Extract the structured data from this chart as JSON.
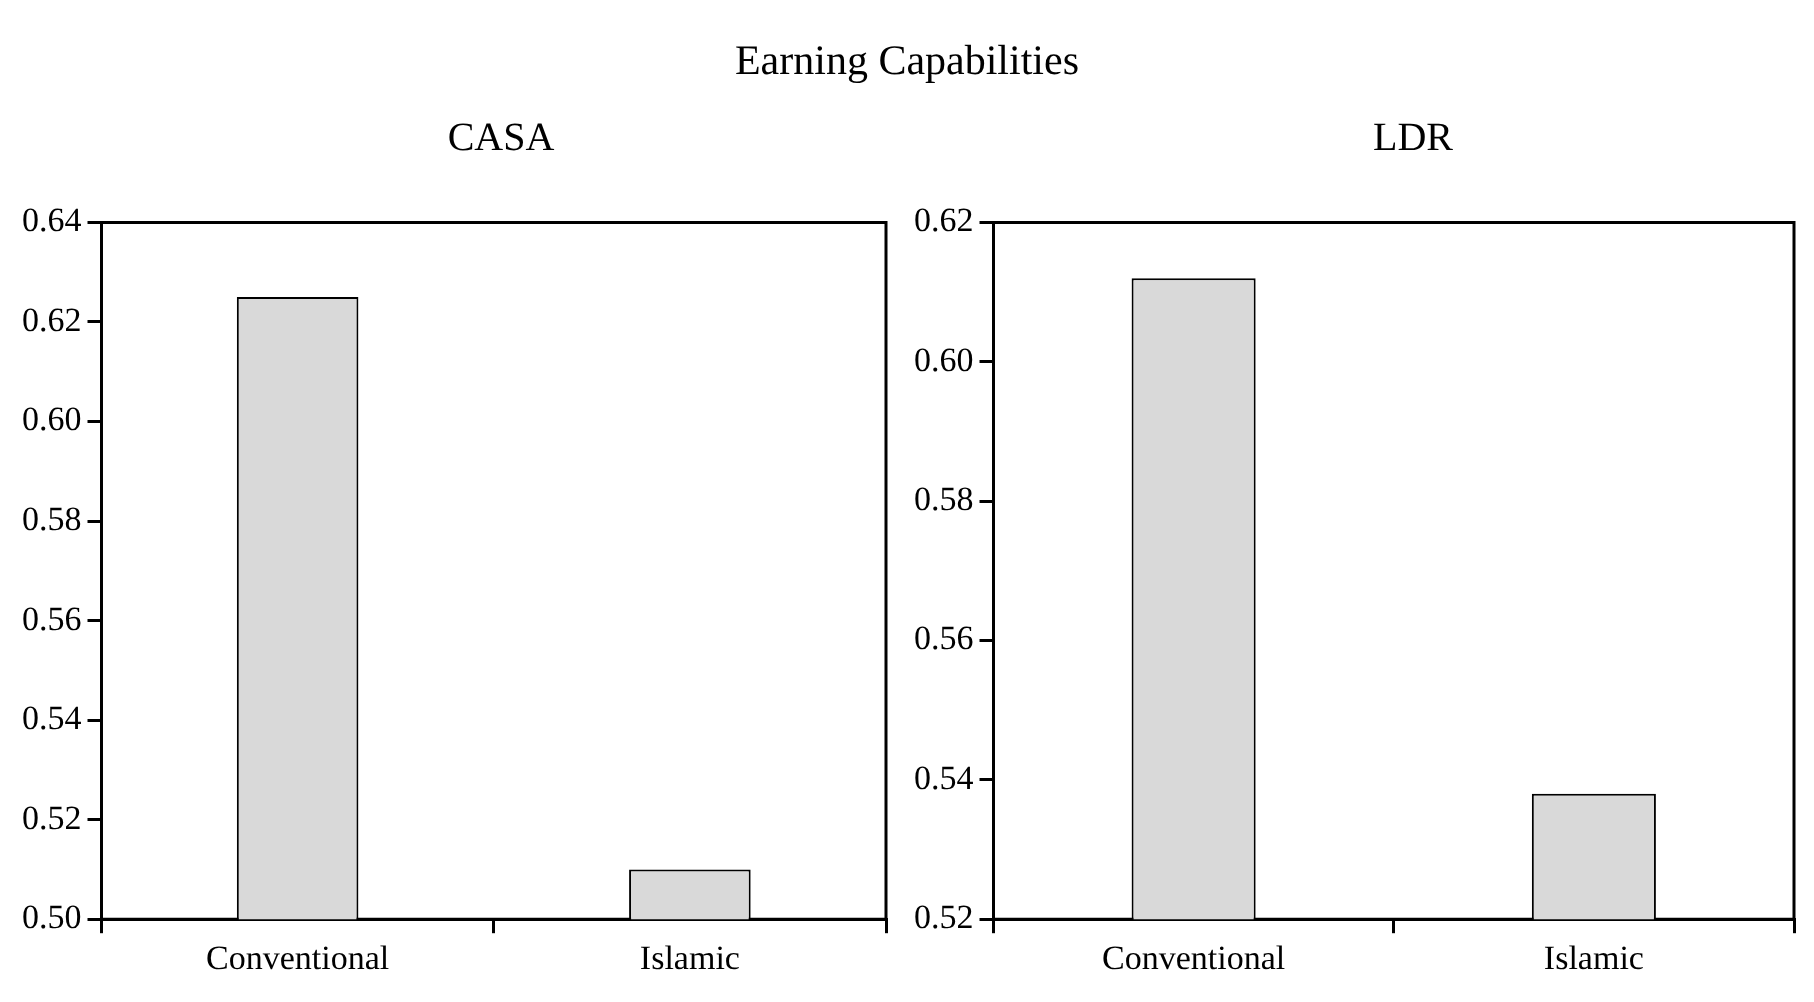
{
  "chart_data": [
    {
      "type": "bar",
      "title": "Earning Capabilities",
      "subtitle": "CASA",
      "categories": [
        "Conventional",
        "Islamic"
      ],
      "values": [
        0.625,
        0.51
      ],
      "color": "#d9d9d9",
      "ylim": [
        0.5,
        0.64
      ],
      "yticks": [
        {
          "value": 0.5,
          "label": "0.50"
        },
        {
          "value": 0.52,
          "label": "0.52"
        },
        {
          "value": 0.54,
          "label": "0.54"
        },
        {
          "value": 0.56,
          "label": "0.56"
        },
        {
          "value": 0.58,
          "label": "0.58"
        },
        {
          "value": 0.6,
          "label": "0.60"
        },
        {
          "value": 0.62,
          "label": "0.62"
        },
        {
          "value": 0.64,
          "label": "0.64"
        }
      ],
      "grid": false,
      "legend": false
    },
    {
      "type": "bar",
      "subtitle": "LDR",
      "categories": [
        "Conventional",
        "Islamic"
      ],
      "values": [
        0.612,
        0.538
      ],
      "color": "#d9d9d9",
      "ylim": [
        0.52,
        0.62
      ],
      "yticks": [
        {
          "value": 0.52,
          "label": "0.52"
        },
        {
          "value": 0.54,
          "label": "0.54"
        },
        {
          "value": 0.56,
          "label": "0.56"
        },
        {
          "value": 0.58,
          "label": "0.58"
        },
        {
          "value": 0.6,
          "label": "0.60"
        },
        {
          "value": 0.62,
          "label": "0.62"
        }
      ],
      "grid": false,
      "legend": false
    }
  ]
}
